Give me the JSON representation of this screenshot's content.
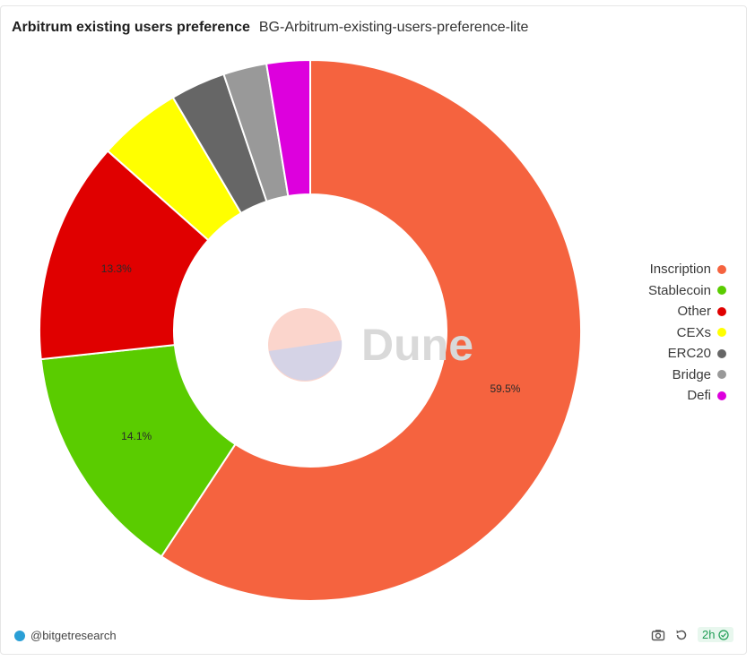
{
  "header": {
    "title": "Arbitrum existing users preference",
    "subtitle": "BG-Arbitrum-existing-users-preference-lite"
  },
  "watermark": {
    "text": "Dune"
  },
  "footer": {
    "author": "@bitgetresearch",
    "refresh_age": "2h",
    "icons": [
      "camera-icon",
      "refresh-icon",
      "check-circle-icon"
    ]
  },
  "chart_data": {
    "type": "pie",
    "title": "Arbitrum existing users preference",
    "categories": [
      "Inscription",
      "Stablecoin",
      "Other",
      "CEXs",
      "ERC20",
      "Bridge",
      "Defi"
    ],
    "values": [
      59.5,
      14.1,
      13.3,
      5.0,
      3.3,
      2.6,
      2.6
    ],
    "colors": [
      "#F5633F",
      "#5ACC00",
      "#E00000",
      "#FFFF00",
      "#666666",
      "#999999",
      "#DD00DD"
    ],
    "data_labels": [
      "59.5%",
      "14.1%",
      "13.3%",
      "",
      "",
      "",
      ""
    ],
    "donut": true,
    "legend_position": "right"
  }
}
